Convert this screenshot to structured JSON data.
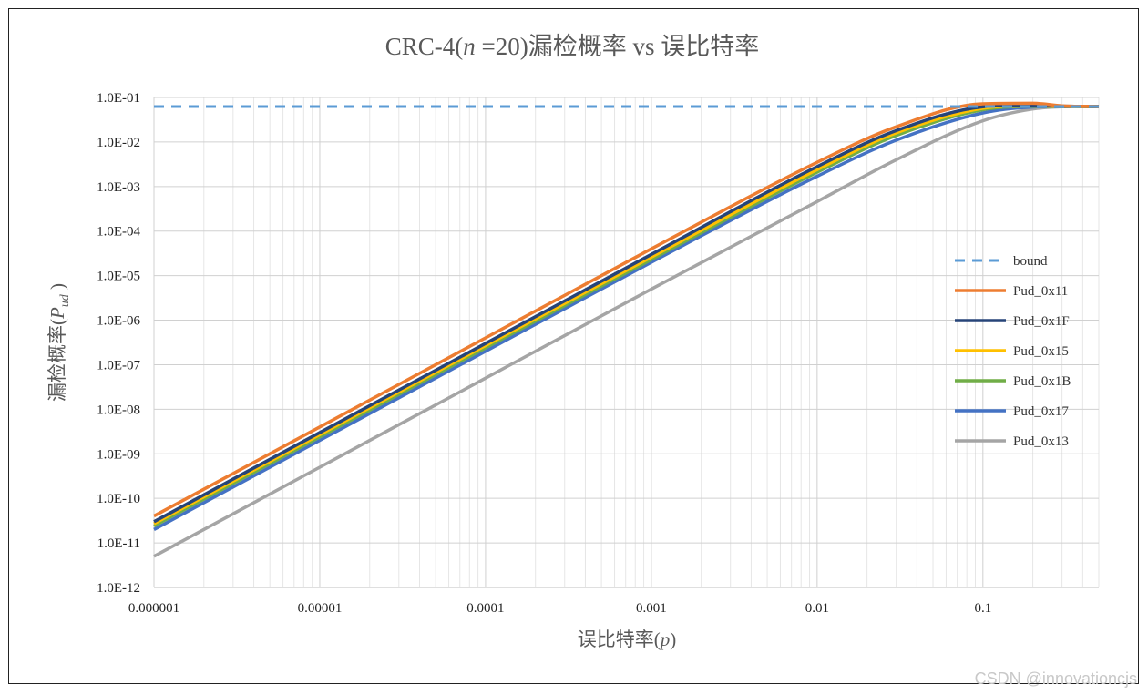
{
  "chart_data": {
    "type": "line",
    "title_prefix": "CRC-4(",
    "title_var": "n",
    "title_suffix": " =20)漏检概率  vs 误比特率",
    "xlabel_prefix": "误比特率(",
    "xlabel_var": "p",
    "xlabel_suffix": ")",
    "ylabel_prefix": "漏检概率(",
    "ylabel_var": "P",
    "ylabel_sub": "ud",
    "ylabel_suffix": " )",
    "x_scale": "log",
    "y_scale": "log",
    "xlim": [
      1e-06,
      0.5
    ],
    "ylim": [
      1e-12,
      0.1
    ],
    "x_ticks": [
      1e-06,
      1e-05,
      0.0001,
      0.001,
      0.01,
      0.1
    ],
    "x_tick_labels": [
      "0.000001",
      "0.00001",
      "0.0001",
      "0.001",
      "0.01",
      "0.1"
    ],
    "y_tick_labels": [
      "1.0E-12",
      "1.0E-11",
      "1.0E-10",
      "1.0E-09",
      "1.0E-08",
      "1.0E-07",
      "1.0E-06",
      "1.0E-05",
      "1.0E-04",
      "1.0E-03",
      "1.0E-02",
      "1.0E-01"
    ],
    "grid": true,
    "legend_position": "right",
    "series": [
      {
        "name": "bound",
        "color": "#5B9BD5",
        "dashed": true,
        "x": [
          1e-06,
          0.5
        ],
        "y": [
          0.0625,
          0.0625
        ]
      },
      {
        "name": "Pud_0x11",
        "color": "#ED7D31",
        "dashed": false,
        "x": [
          1e-06,
          1e-05,
          0.0001,
          0.001,
          0.01,
          0.03,
          0.1,
          0.2,
          0.3,
          0.5
        ],
        "y": [
          4e-11,
          4e-09,
          4e-07,
          4e-05,
          0.0035,
          0.022,
          0.072,
          0.074,
          0.065,
          0.0625
        ]
      },
      {
        "name": "Pud_0x1F",
        "color": "#264478",
        "dashed": false,
        "x": [
          1e-06,
          1e-05,
          0.0001,
          0.001,
          0.01,
          0.03,
          0.1,
          0.2,
          0.3,
          0.5
        ],
        "y": [
          3e-11,
          3e-09,
          3e-07,
          3e-05,
          0.0028,
          0.018,
          0.062,
          0.068,
          0.064,
          0.0625
        ]
      },
      {
        "name": "Pud_0x15",
        "color": "#FFC000",
        "dashed": false,
        "x": [
          1e-06,
          1e-05,
          0.0001,
          0.001,
          0.01,
          0.03,
          0.1,
          0.2,
          0.3,
          0.5
        ],
        "y": [
          2.7e-11,
          2.7e-09,
          2.7e-07,
          2.6e-05,
          0.0024,
          0.016,
          0.057,
          0.065,
          0.063,
          0.0625
        ]
      },
      {
        "name": "Pud_0x1B",
        "color": "#70AD47",
        "dashed": false,
        "x": [
          1e-06,
          1e-05,
          0.0001,
          0.001,
          0.01,
          0.03,
          0.1,
          0.2,
          0.3,
          0.5
        ],
        "y": [
          2.4e-11,
          2.4e-09,
          2.4e-07,
          2.3e-05,
          0.0021,
          0.014,
          0.053,
          0.063,
          0.0628,
          0.0625
        ]
      },
      {
        "name": "Pud_0x17",
        "color": "#4472C4",
        "dashed": false,
        "x": [
          1e-06,
          1e-05,
          0.0001,
          0.001,
          0.01,
          0.03,
          0.1,
          0.2,
          0.3,
          0.5
        ],
        "y": [
          2e-11,
          2e-09,
          2e-07,
          2e-05,
          0.0017,
          0.011,
          0.045,
          0.061,
          0.0625,
          0.0625
        ]
      },
      {
        "name": "Pud_0x13",
        "color": "#A5A5A5",
        "dashed": false,
        "x": [
          1e-06,
          1e-05,
          0.0001,
          0.001,
          0.01,
          0.03,
          0.1,
          0.2,
          0.3,
          0.5
        ],
        "y": [
          5e-12,
          5e-10,
          5e-08,
          5e-06,
          0.00046,
          0.004,
          0.03,
          0.055,
          0.0615,
          0.0625
        ]
      }
    ]
  },
  "watermark": "CSDN @innovationcjs"
}
